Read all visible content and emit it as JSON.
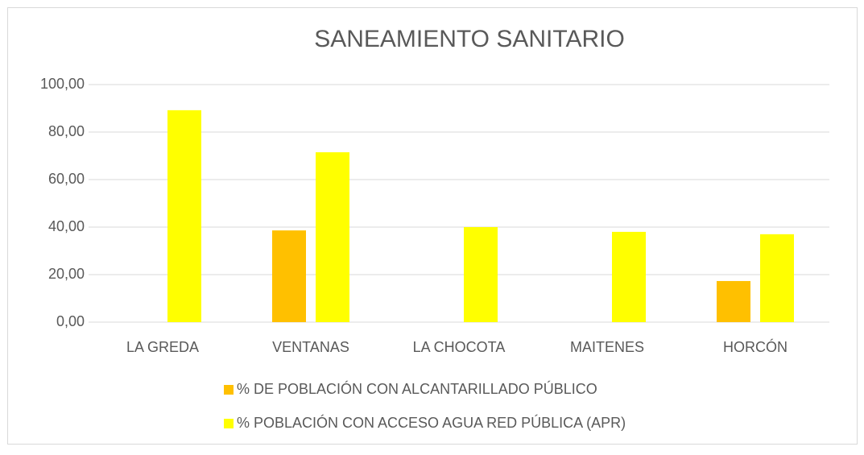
{
  "chart_data": {
    "type": "bar",
    "title": "SANEAMIENTO SANITARIO",
    "categories": [
      "LA GREDA",
      "VENTANAS",
      "LA CHOCOTA",
      "MAITENES",
      "HORCÓN"
    ],
    "series": [
      {
        "name": "% DE POBLACIÓN CON ALCANTARILLADO PÚBLICO",
        "color": "#ffc000",
        "values": [
          0,
          38.6,
          0,
          0,
          17.3
        ]
      },
      {
        "name": "% POBLACIÓN CON ACCESO AGUA RED PÚBLICA (APR)",
        "color": "#ffff00",
        "values": [
          89.2,
          71.5,
          40,
          38,
          37
        ]
      }
    ],
    "ylim": [
      0,
      100
    ],
    "yticks": [
      {
        "value": 0,
        "label": "0,00"
      },
      {
        "value": 20,
        "label": "20,00"
      },
      {
        "value": 40,
        "label": "40,00"
      },
      {
        "value": 60,
        "label": "60,00"
      },
      {
        "value": 80,
        "label": "80,00"
      },
      {
        "value": 100,
        "label": "100,00"
      }
    ],
    "grid": true,
    "legend": "bottom"
  }
}
